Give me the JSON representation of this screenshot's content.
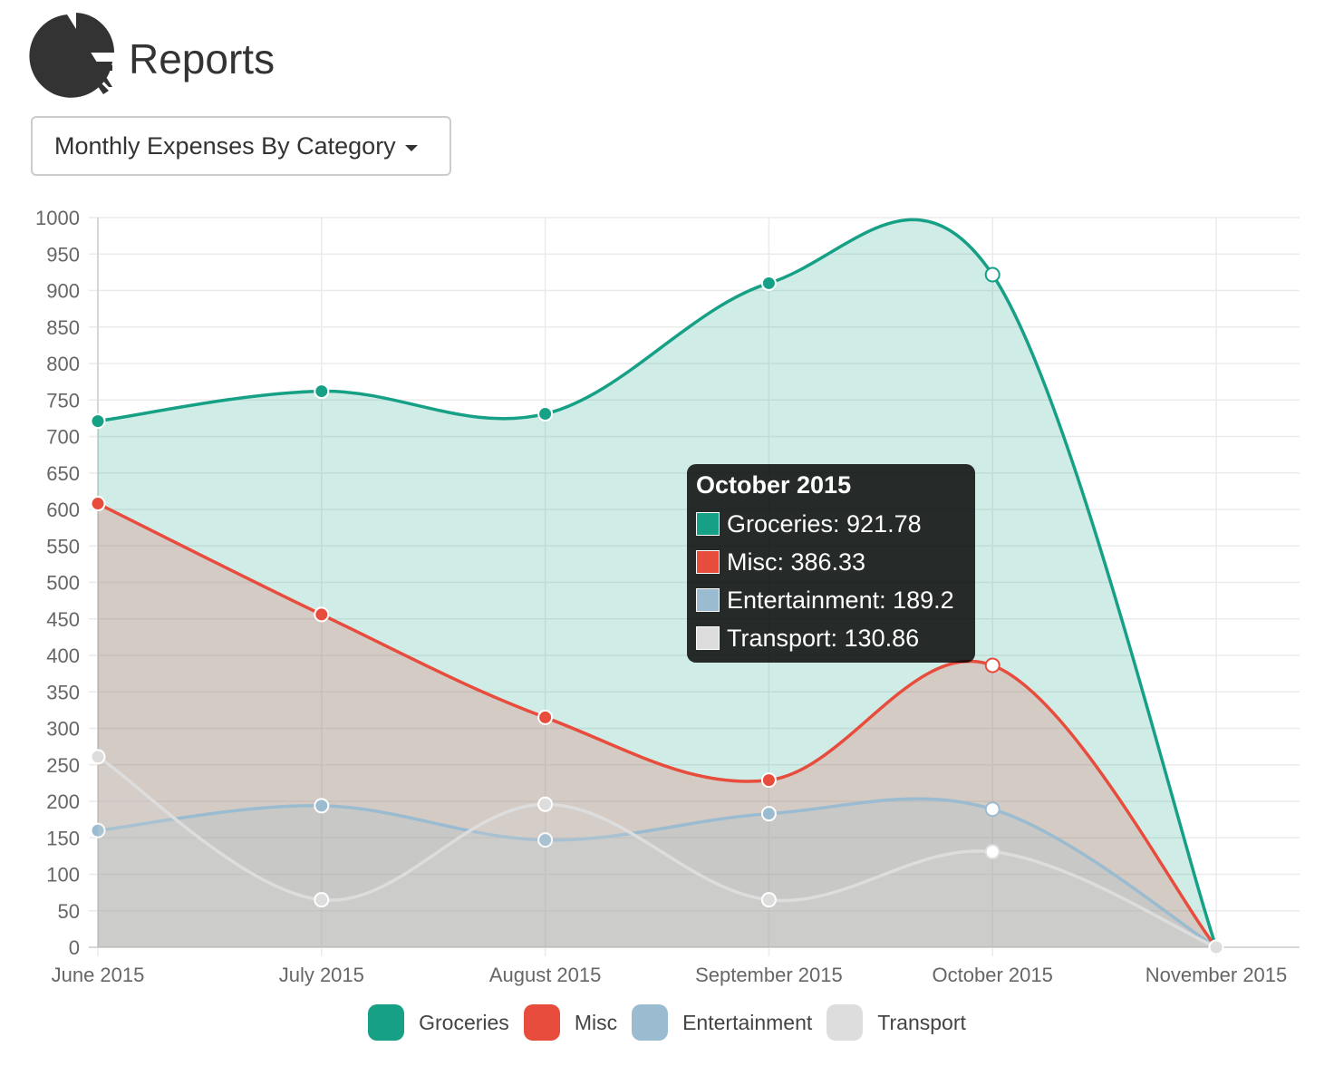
{
  "header": {
    "title": "Reports",
    "icon": "pie-chart-icon"
  },
  "report_selector": {
    "label": "Monthly Expenses By Category"
  },
  "colors": {
    "Groceries": "#16a085",
    "Misc": "#e74c3c",
    "Entertainment": "#9bbcd0",
    "Transport": "#dddddd"
  },
  "tooltip": {
    "title": "October 2015",
    "rows": [
      {
        "label": "Groceries: 921.78",
        "series": "Groceries"
      },
      {
        "label": "Misc: 386.33",
        "series": "Misc"
      },
      {
        "label": "Entertainment: 189.2",
        "series": "Entertainment"
      },
      {
        "label": "Transport: 130.86",
        "series": "Transport"
      }
    ]
  },
  "chart_data": {
    "type": "area",
    "title": "Monthly Expenses By Category",
    "categories": [
      "June 2015",
      "July 2015",
      "August 2015",
      "September 2015",
      "October 2015",
      "November 2015"
    ],
    "series": [
      {
        "name": "Groceries",
        "values": [
          721,
          762,
          731,
          910,
          921.78,
          0
        ]
      },
      {
        "name": "Misc",
        "values": [
          608,
          456,
          315,
          229,
          386.33,
          0
        ]
      },
      {
        "name": "Entertainment",
        "values": [
          160,
          194,
          147,
          183,
          189.2,
          0
        ]
      },
      {
        "name": "Transport",
        "values": [
          261,
          65,
          196,
          65,
          130.86,
          0
        ]
      }
    ],
    "ylim": [
      0,
      1000
    ],
    "ytick_step": 50,
    "xlabel": "",
    "ylabel": "",
    "grid": true,
    "legend_position": "bottom"
  }
}
